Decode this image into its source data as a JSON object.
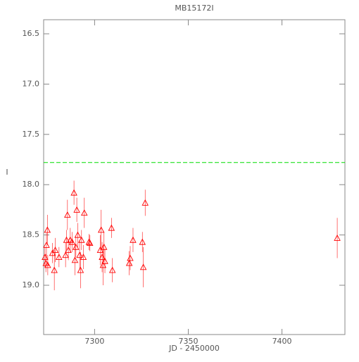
{
  "chart_data": {
    "type": "errorbar-scatter",
    "title": "MB15172I",
    "x_label": "JD - 2450000",
    "y_label": "I",
    "x": [
      7273.5,
      7274.0,
      7274.3,
      7274.8,
      7275.0,
      7277.5,
      7278.5,
      7279.0,
      7281.0,
      7284.5,
      7285.0,
      7285.5,
      7286.0,
      7287.0,
      7288.0,
      7289.0,
      7289.5,
      7290.0,
      7290.5,
      7291.0,
      7292.0,
      7292.5,
      7293.0,
      7294.0,
      7294.5,
      7297.0,
      7297.5,
      7303.0,
      7303.5,
      7304.0,
      7304.5,
      7305.0,
      7305.5,
      7309.0,
      7309.5,
      7318.5,
      7319.0,
      7320.5,
      7325.5,
      7326.0,
      7327.0,
      7429.5
    ],
    "values": [
      18.72,
      18.78,
      18.6,
      18.45,
      18.8,
      18.68,
      18.85,
      18.65,
      18.72,
      18.7,
      18.55,
      18.3,
      18.65,
      18.55,
      18.57,
      18.08,
      18.75,
      18.62,
      18.25,
      18.5,
      18.7,
      18.85,
      18.55,
      18.72,
      18.28,
      18.57,
      18.58,
      18.65,
      18.45,
      18.72,
      18.8,
      18.62,
      18.76,
      18.43,
      18.85,
      18.78,
      18.73,
      18.55,
      18.57,
      18.82,
      18.18,
      18.53
    ],
    "errors": [
      0.1,
      0.09,
      0.12,
      0.15,
      0.1,
      0.1,
      0.2,
      0.12,
      0.1,
      0.12,
      0.1,
      0.15,
      0.1,
      0.12,
      0.1,
      0.12,
      0.15,
      0.1,
      0.12,
      0.12,
      0.15,
      0.18,
      0.1,
      0.12,
      0.15,
      0.08,
      0.08,
      0.15,
      0.2,
      0.15,
      0.2,
      0.15,
      0.12,
      0.1,
      0.12,
      0.12,
      0.12,
      0.12,
      0.1,
      0.2,
      0.13,
      0.2
    ],
    "color": "#ff0000",
    "reference_line": 17.78,
    "reference_color": "#00dd00",
    "xlim": [
      7272.8,
      7433.6
    ],
    "xticks": [
      7300,
      7350,
      7400
    ],
    "ylim": [
      16.36,
      19.49
    ],
    "y_inverted": true,
    "yticks": [
      16.5,
      {
        "value": 17,
        "label": "17.0"
      },
      17.5,
      {
        "value": 18,
        "label": "18.0"
      },
      18.5,
      {
        "value": 19,
        "label": "19.0"
      }
    ]
  }
}
